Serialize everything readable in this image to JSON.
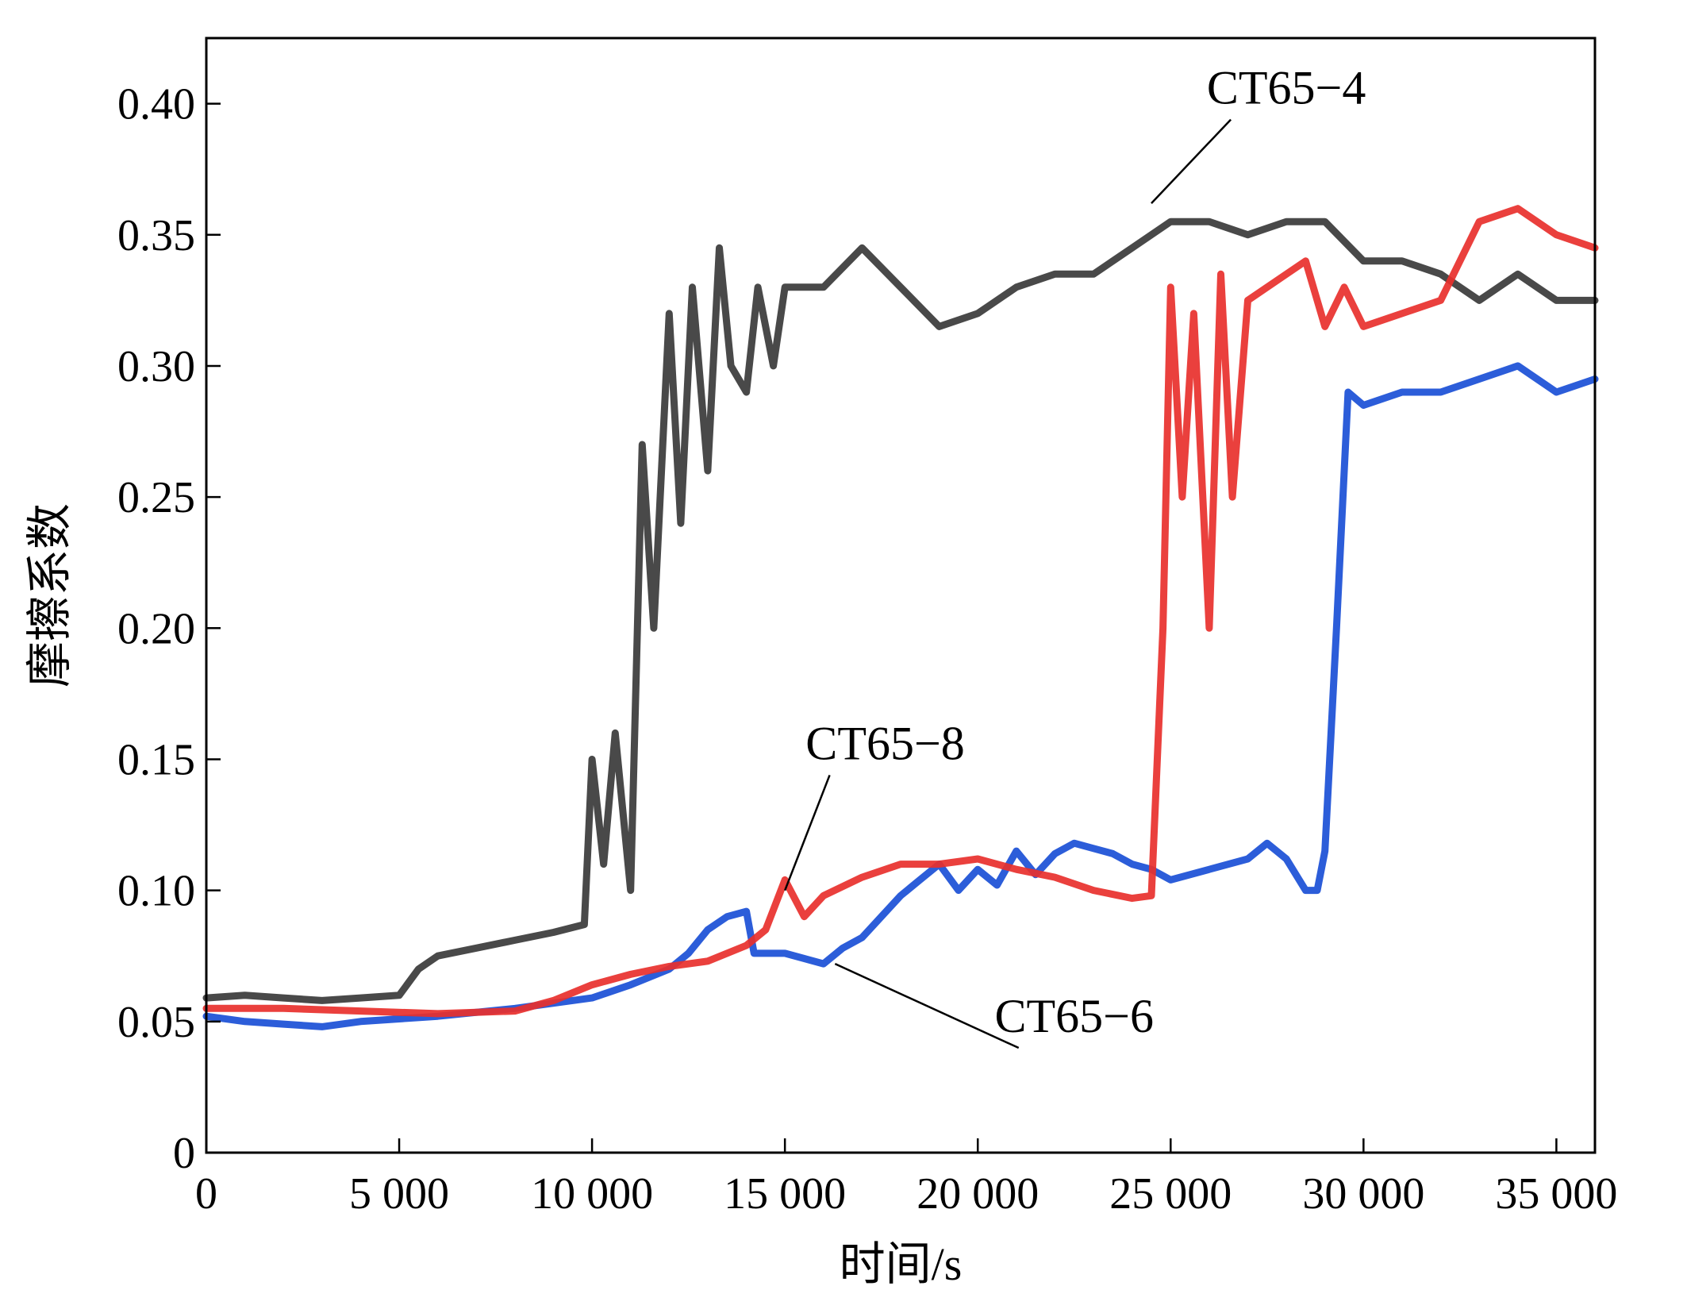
{
  "chart_data": {
    "type": "line",
    "xlabel": "时间/s",
    "ylabel": "摩擦系数",
    "xlim": [
      0,
      36000
    ],
    "ylim": [
      0,
      0.425
    ],
    "xticks": [
      0,
      5000,
      10000,
      15000,
      20000,
      25000,
      30000,
      35000
    ],
    "xtick_labels": [
      "0",
      "5 000",
      "10 000",
      "15 000",
      "20 000",
      "25 000",
      "30 000",
      "35 000"
    ],
    "yticks": [
      0,
      0.05,
      0.1,
      0.15,
      0.2,
      0.25,
      0.3,
      0.35,
      0.4
    ],
    "ytick_labels": [
      "0",
      "0.05",
      "0.10",
      "0.15",
      "0.20",
      "0.25",
      "0.30",
      "0.35",
      "0.40"
    ],
    "grid": false,
    "legend": "none",
    "series": [
      {
        "name": "CT65-4",
        "color": "#3a3a3a",
        "x": [
          0,
          1000,
          2000,
          3000,
          4000,
          5000,
          5500,
          6000,
          7000,
          8000,
          9000,
          9800,
          10000,
          10300,
          10600,
          11000,
          11300,
          11600,
          12000,
          12300,
          12600,
          13000,
          13300,
          13600,
          14000,
          14300,
          14700,
          15000,
          16000,
          17000,
          18000,
          19000,
          20000,
          21000,
          22000,
          23000,
          24000,
          25000,
          26000,
          27000,
          28000,
          29000,
          30000,
          31000,
          32000,
          33000,
          34000,
          35000,
          36000
        ],
        "y": [
          0.059,
          0.06,
          0.059,
          0.058,
          0.059,
          0.06,
          0.07,
          0.075,
          0.078,
          0.081,
          0.084,
          0.087,
          0.15,
          0.11,
          0.16,
          0.1,
          0.27,
          0.2,
          0.32,
          0.24,
          0.33,
          0.26,
          0.345,
          0.3,
          0.29,
          0.33,
          0.3,
          0.33,
          0.33,
          0.345,
          0.33,
          0.315,
          0.32,
          0.33,
          0.335,
          0.335,
          0.345,
          0.355,
          0.355,
          0.35,
          0.355,
          0.355,
          0.34,
          0.34,
          0.335,
          0.325,
          0.335,
          0.325,
          0.325
        ]
      },
      {
        "name": "CT65-8",
        "color": "#e8302c",
        "x": [
          0,
          2000,
          4000,
          6000,
          8000,
          9000,
          10000,
          11000,
          12000,
          13000,
          14000,
          14500,
          15000,
          15500,
          16000,
          17000,
          18000,
          19000,
          20000,
          21000,
          22000,
          23000,
          24000,
          24500,
          24800,
          25000,
          25300,
          25600,
          26000,
          26300,
          26600,
          27000,
          28000,
          28500,
          29000,
          29500,
          30000,
          31000,
          32000,
          33000,
          34000,
          35000,
          36000
        ],
        "y": [
          0.055,
          0.055,
          0.054,
          0.053,
          0.054,
          0.058,
          0.064,
          0.068,
          0.071,
          0.073,
          0.079,
          0.085,
          0.104,
          0.09,
          0.098,
          0.105,
          0.11,
          0.11,
          0.112,
          0.108,
          0.105,
          0.1,
          0.097,
          0.098,
          0.2,
          0.33,
          0.25,
          0.32,
          0.2,
          0.335,
          0.25,
          0.325,
          0.335,
          0.34,
          0.315,
          0.33,
          0.315,
          0.32,
          0.325,
          0.355,
          0.36,
          0.35,
          0.345
        ]
      },
      {
        "name": "CT65-6",
        "color": "#1a4fd6",
        "x": [
          0,
          1000,
          2000,
          3000,
          4000,
          6000,
          8000,
          10000,
          11000,
          12000,
          12500,
          13000,
          13500,
          14000,
          14200,
          15000,
          16000,
          16500,
          17000,
          17500,
          18000,
          18500,
          19000,
          19500,
          20000,
          20500,
          21000,
          21500,
          22000,
          22500,
          23000,
          23500,
          24000,
          24500,
          25000,
          26000,
          27000,
          27500,
          28000,
          28500,
          28800,
          29000,
          29300,
          29600,
          30000,
          31000,
          32000,
          33000,
          34000,
          35000,
          36000
        ],
        "y": [
          0.052,
          0.05,
          0.049,
          0.048,
          0.05,
          0.052,
          0.055,
          0.059,
          0.064,
          0.07,
          0.076,
          0.085,
          0.09,
          0.092,
          0.076,
          0.076,
          0.072,
          0.078,
          0.082,
          0.09,
          0.098,
          0.104,
          0.11,
          0.1,
          0.108,
          0.102,
          0.115,
          0.106,
          0.114,
          0.118,
          0.116,
          0.114,
          0.11,
          0.108,
          0.104,
          0.108,
          0.112,
          0.118,
          0.112,
          0.1,
          0.1,
          0.115,
          0.2,
          0.29,
          0.285,
          0.29,
          0.29,
          0.295,
          0.3,
          0.29,
          0.295
        ]
      }
    ],
    "annotations": [
      {
        "text": "CT65−4",
        "series": "CT65-4",
        "point": [
          24500,
          0.362
        ],
        "label_at": [
          28000,
          0.4
        ]
      },
      {
        "text": "CT65−8",
        "series": "CT65-8",
        "point": [
          15000,
          0.1
        ],
        "label_at": [
          17600,
          0.15
        ]
      },
      {
        "text": "CT65−6",
        "series": "CT65-6",
        "point": [
          16300,
          0.072
        ],
        "label_at": [
          22500,
          0.046
        ]
      }
    ]
  }
}
